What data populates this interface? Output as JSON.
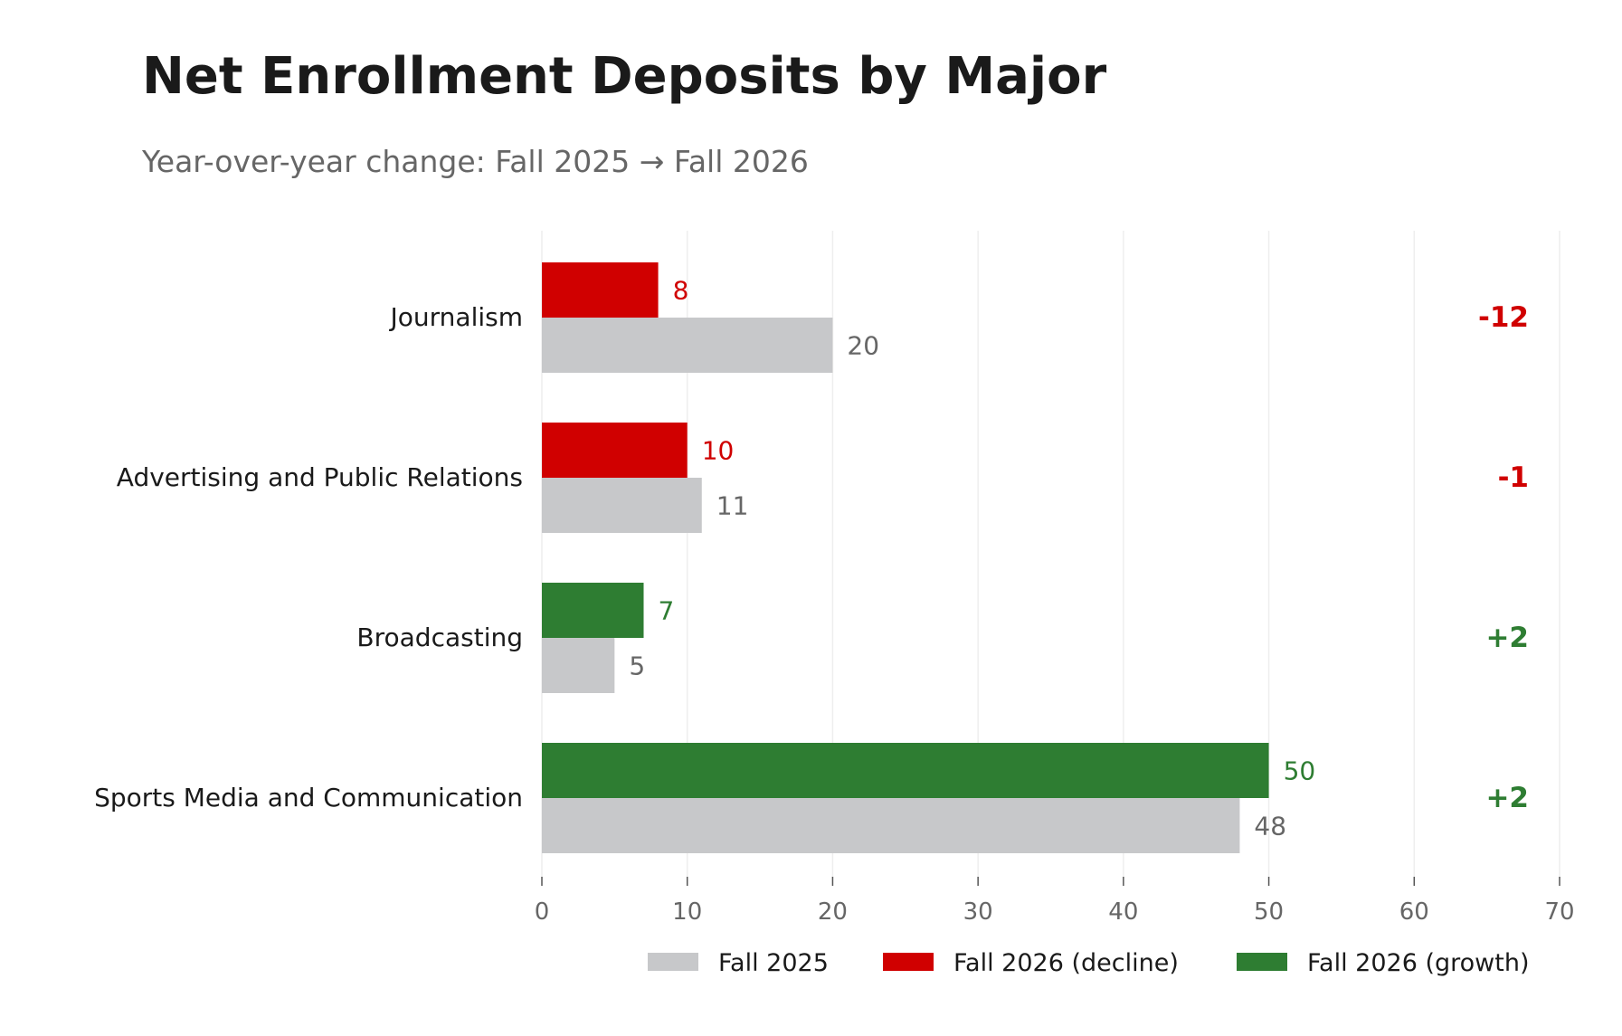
{
  "chart_data": {
    "type": "bar",
    "orientation": "horizontal",
    "title": "Net Enrollment Deposits by Major",
    "subtitle": "Year-over-year change: Fall 2025 → Fall 2026",
    "categories": [
      "Journalism",
      "Advertising and Public Relations",
      "Broadcasting",
      "Sports Media and Communication"
    ],
    "series": [
      {
        "name": "Fall 2025",
        "values": [
          20,
          11,
          5,
          48
        ],
        "color": "#c7c8ca"
      },
      {
        "name": "Fall 2026",
        "values": [
          8,
          10,
          7,
          50
        ]
      }
    ],
    "changes": [
      "-12",
      "-1",
      "+2",
      "+2"
    ],
    "xlim": [
      0,
      70
    ],
    "xticks": [
      0,
      10,
      20,
      30,
      40,
      50,
      60,
      70
    ],
    "grid": "vertical",
    "legend": {
      "placement": "bottom",
      "entries": [
        {
          "label": "Fall 2025",
          "color": "#c7c8ca"
        },
        {
          "label": "Fall 2026 (decline)",
          "color": "#d00000"
        },
        {
          "label": "Fall 2026 (growth)",
          "color": "#2e7d32"
        }
      ]
    },
    "colors": {
      "decline": "#d00000",
      "growth": "#2e7d32",
      "baseline": "#c7c8ca",
      "baseline_label": "#666666"
    }
  }
}
